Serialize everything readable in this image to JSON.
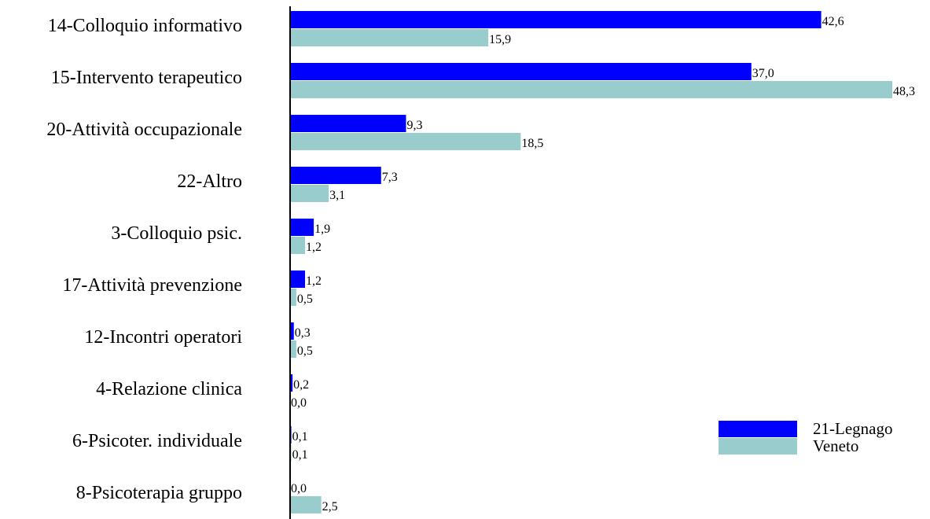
{
  "chart_data": {
    "type": "bar",
    "orientation": "horizontal",
    "categories": [
      "14-Colloquio informativo",
      "15-Intervento terapeutico",
      "20-Attività occupazionale",
      "22-Altro",
      "3-Colloquio psic.",
      "17-Attività prevenzione",
      "12-Incontri operatori",
      "4-Relazione clinica",
      "6-Psicoter. individuale",
      "8-Psicoterapia gruppo"
    ],
    "series": [
      {
        "name": "21-Legnago",
        "color": "#0000ff",
        "values": [
          42.6,
          37.0,
          9.3,
          7.3,
          1.9,
          1.2,
          0.3,
          0.2,
          0.1,
          0.0
        ],
        "labels": [
          "42,6",
          "37,0",
          "9,3",
          "7,3",
          "1,9",
          "1,2",
          "0,3",
          "0,2",
          "0,1",
          "0,0"
        ]
      },
      {
        "name": "Veneto",
        "color": "#99cccc",
        "values": [
          15.9,
          48.3,
          18.5,
          3.1,
          1.2,
          0.5,
          0.5,
          0.0,
          0.1,
          2.5
        ],
        "labels": [
          "15,9",
          "48,3",
          "18,5",
          "3,1",
          "1,2",
          "0,5",
          "0,5",
          "0,0",
          "0,1",
          "2,5"
        ]
      }
    ],
    "xlim": [
      0,
      48.3
    ],
    "grid": false,
    "legend_position": "bottom-right"
  }
}
